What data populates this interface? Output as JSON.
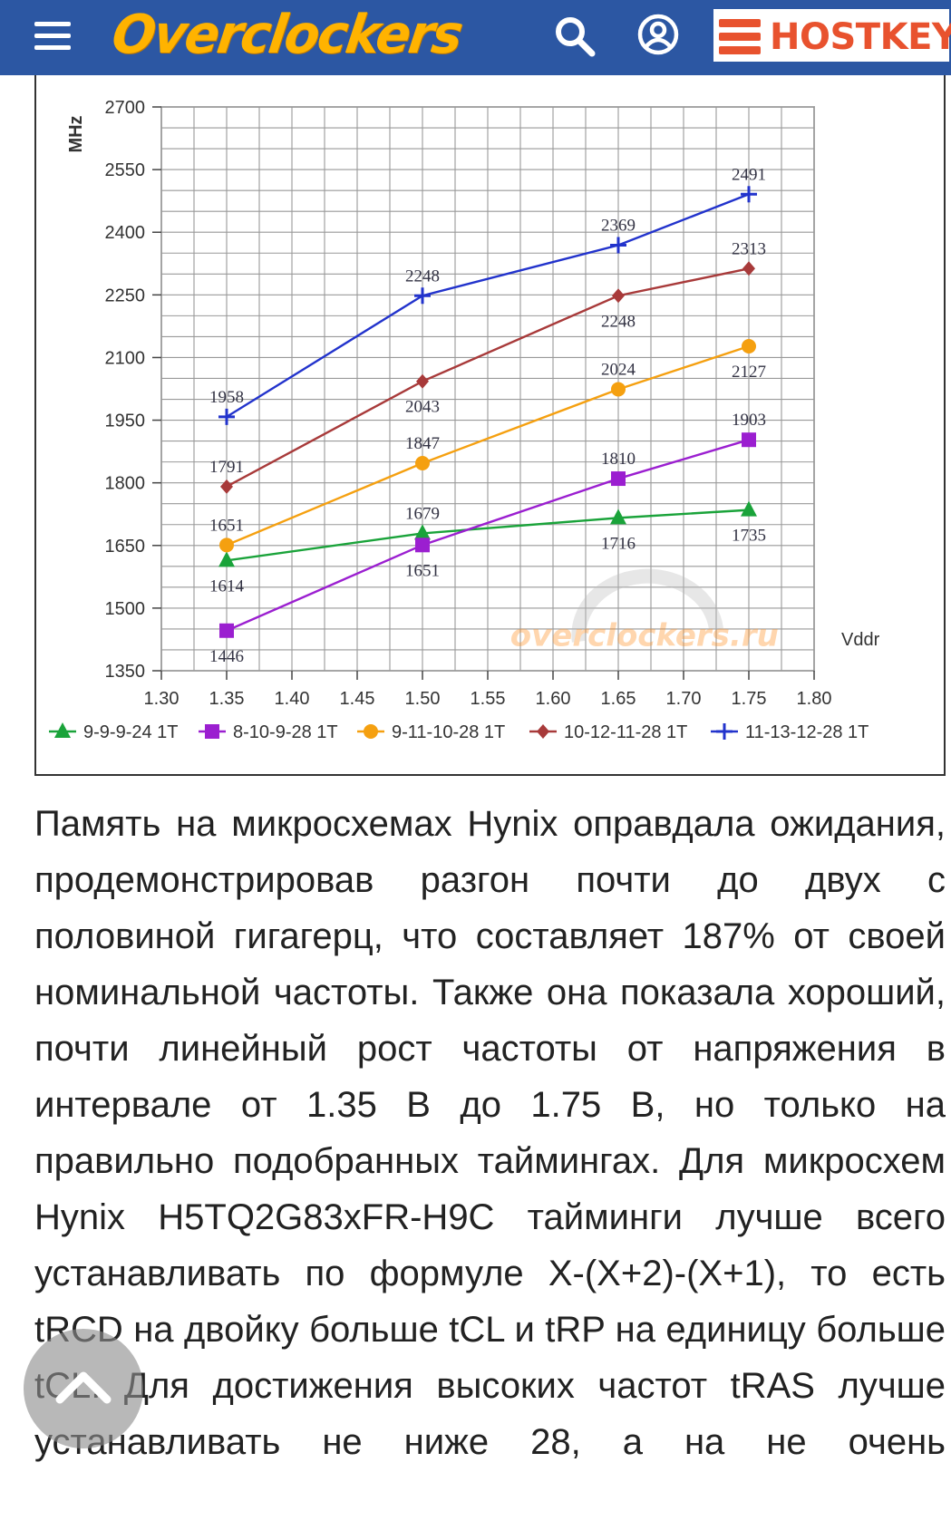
{
  "header": {
    "site_name": "Overclockers",
    "partner_name": "HOSTKEY",
    "colors": {
      "bar": "#2c57a3",
      "logo": "#ffb300",
      "partner": "#e8522e"
    },
    "icons": [
      "menu-icon",
      "search-icon",
      "account-icon",
      "hostkey-logo-icon"
    ]
  },
  "chart_data": {
    "type": "line",
    "ylabel": "MHz",
    "xlabel": "Vddr",
    "x_ticks": [
      "1.30",
      "1.35",
      "1.40",
      "1.45",
      "1.50",
      "1.55",
      "1.60",
      "1.65",
      "1.70",
      "1.75",
      "1.80"
    ],
    "y_ticks": [
      "2700",
      "2550",
      "2400",
      "2250",
      "2100",
      "1950",
      "1800",
      "1650",
      "1500",
      "1350"
    ],
    "xlim": [
      1.3,
      1.8
    ],
    "ylim": [
      1350,
      2700
    ],
    "grid": true,
    "legend_position": "bottom",
    "watermark": "overclockers.ru",
    "x": [
      1.35,
      1.5,
      1.65,
      1.75
    ],
    "series": [
      {
        "name": "9-9-9-24 1T",
        "color": "#1aa33a",
        "marker": "triangle",
        "values": [
          1614,
          1679,
          1716,
          1735
        ],
        "labels": [
          "1614",
          "1679",
          "1716",
          "1735"
        ]
      },
      {
        "name": "8-10-9-28 1T",
        "color": "#9b1fd0",
        "marker": "square",
        "values": [
          1446,
          1651,
          1810,
          1903
        ],
        "labels": [
          "1446",
          "1651",
          "1810",
          "1903"
        ]
      },
      {
        "name": "9-11-10-28 1T",
        "color": "#f5a010",
        "marker": "circle",
        "values": [
          1651,
          1847,
          2024,
          2127
        ],
        "labels": [
          "1651",
          "1847",
          "2024",
          "2127"
        ]
      },
      {
        "name": "10-12-11-28 1T",
        "color": "#a83a3a",
        "marker": "diamond",
        "values": [
          1791,
          2043,
          2248,
          2313
        ],
        "labels": [
          "1791",
          "2043",
          "2248",
          "2313"
        ]
      },
      {
        "name": "11-13-12-28 1T",
        "color": "#2233cc",
        "marker": "plus",
        "values": [
          1958,
          2248,
          2369,
          2491
        ],
        "labels": [
          "1958",
          "2248",
          "2369",
          "2491"
        ]
      }
    ]
  },
  "article": {
    "paragraph": "Память на микросхемах Hynix оправдала ожидания, продемонстрировав разгон почти до двух с половиной гигагерц, что составляет 187% от своей номинальной частоты. Также она показала хороший, почти линейный рост частоты от напряжения в интервале от 1.35 В до 1.75 В, но только на правильно подобранных таймингах. Для микросхем Hynix H5TQ2G83xFR-H9C тайминги лучше всего устанавливать по формуле X-(X+2)-(X+1), то есть tRCD на двойку больше tCL и tRP на единицу больше tCL. Для достижения высоких частот tRAS лучше устанавливать не ниже 28, а на не очень"
  }
}
